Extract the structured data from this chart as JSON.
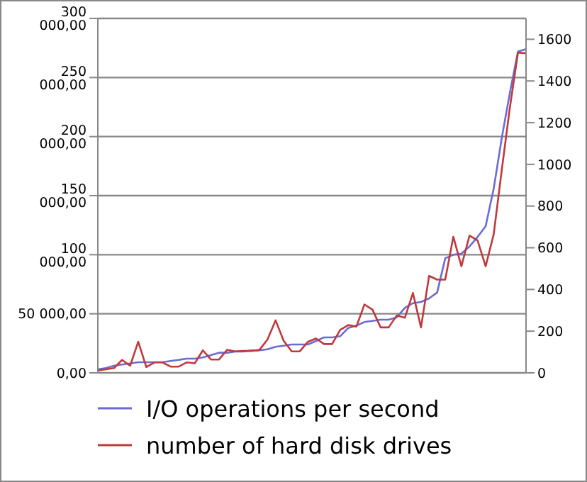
{
  "chart_data": {
    "type": "line",
    "categories": [
      null,
      null,
      null,
      null,
      null,
      null,
      null,
      null,
      null,
      null,
      null,
      null,
      null,
      null,
      null,
      null,
      null,
      null,
      null,
      null,
      null,
      null,
      null,
      null,
      null,
      null,
      null,
      null,
      null,
      null,
      null,
      null,
      null,
      null,
      null,
      null,
      null,
      null,
      null,
      null,
      null,
      null,
      null,
      null,
      null,
      null,
      null,
      null,
      null,
      null,
      null,
      null,
      null,
      null
    ],
    "series": [
      {
        "name": "I/O operations per second",
        "color": "#6b6bd6",
        "values": [
          3000,
          4000,
          6000,
          7000,
          8000,
          9000,
          9000,
          9000,
          9000,
          10000,
          11000,
          12000,
          12000,
          13000,
          15000,
          17000,
          17000,
          18000,
          18000,
          19000,
          19000,
          20000,
          22000,
          23000,
          24000,
          24000,
          24000,
          27000,
          30000,
          30000,
          31000,
          38000,
          40000,
          43000,
          44000,
          45000,
          45000,
          47000,
          55000,
          59000,
          60000,
          63000,
          68000,
          97000,
          100000,
          101000,
          107000,
          115000,
          124000,
          156000,
          199000,
          237000,
          272000,
          274000
        ]
      },
      {
        "name": "number of hard disk drives",
        "color": "#c0393b",
        "axis": "y2",
        "values": [
          11,
          17,
          23,
          62,
          34,
          149,
          28,
          50,
          50,
          30,
          30,
          50,
          46,
          108,
          64,
          64,
          110,
          103,
          105,
          105,
          110,
          160,
          252,
          154,
          103,
          103,
          149,
          165,
          138,
          138,
          206,
          229,
          222,
          328,
          303,
          218,
          218,
          275,
          264,
          383,
          218,
          465,
          447,
          447,
          653,
          511,
          658,
          635,
          511,
          665,
          974,
          1272,
          1536,
          1533
        ]
      }
    ],
    "ylim": [
      0,
      300000
    ],
    "yticks": [
      {
        "value": 0,
        "label": "0,00"
      },
      {
        "value": 50000,
        "label": "50 000,00"
      },
      {
        "value": 100000,
        "label": "100 000,00"
      },
      {
        "value": 150000,
        "label": "150 000,00"
      },
      {
        "value": 200000,
        "label": "200 000,00"
      },
      {
        "value": 250000,
        "label": "250 000,00"
      },
      {
        "value": 300000,
        "label": "300 000,00"
      }
    ],
    "y2lim": [
      0,
      1700
    ],
    "y2ticks": [
      0,
      200,
      400,
      600,
      800,
      1000,
      1200,
      1400,
      1600
    ],
    "grid": "y",
    "legend": "bottom",
    "marker": "none",
    "line_style": "solid",
    "tick_labels": "y"
  }
}
